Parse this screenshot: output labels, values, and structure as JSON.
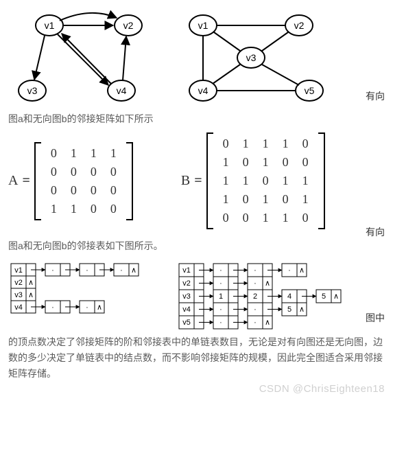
{
  "sideLabels": {
    "top": "有向",
    "mid": "有向",
    "bottom": "图中"
  },
  "graphA": {
    "nodes": [
      "v1",
      "v2",
      "v3",
      "v4"
    ]
  },
  "graphB": {
    "nodes": [
      "v1",
      "v2",
      "v3",
      "v4",
      "v5"
    ]
  },
  "caption1": "图a和无向图b的邻接矩阵如下所示",
  "matA": {
    "label": "A",
    "rows": [
      [
        "0",
        "1",
        "1",
        "1"
      ],
      [
        "0",
        "0",
        "0",
        "0"
      ],
      [
        "0",
        "0",
        "0",
        "0"
      ],
      [
        "1",
        "1",
        "0",
        "0"
      ]
    ]
  },
  "matB": {
    "label": "B",
    "rows": [
      [
        "0",
        "1",
        "1",
        "1",
        "0"
      ],
      [
        "1",
        "0",
        "1",
        "0",
        "0"
      ],
      [
        "1",
        "1",
        "0",
        "1",
        "1"
      ],
      [
        "1",
        "0",
        "1",
        "0",
        "1"
      ],
      [
        "0",
        "0",
        "1",
        "1",
        "0"
      ]
    ]
  },
  "caption2": "图a和无向图b的邻接表如下图所示。",
  "adjA": {
    "labels": [
      "v1",
      "v2",
      "v3",
      "v4"
    ],
    "rows": [
      [
        {
          "v": "·"
        },
        {
          "v": "·"
        },
        {
          "v": "·",
          "nil": true
        }
      ],
      [
        {
          "nil": true
        }
      ],
      [
        {
          "nil": true
        }
      ],
      [
        {
          "v": "·"
        },
        {
          "v": "·",
          "nil": true
        }
      ]
    ]
  },
  "adjB": {
    "labels": [
      "v1",
      "v2",
      "v3",
      "v4",
      "v5"
    ],
    "rows": [
      [
        {
          "v": "·"
        },
        {
          "v": "·"
        },
        {
          "v": "·",
          "nil": true
        }
      ],
      [
        {
          "v": "·"
        },
        {
          "v": "·",
          "nil": true
        }
      ],
      [
        {
          "v": "1"
        },
        {
          "v": "2"
        },
        {
          "v": "4"
        },
        {
          "v": "5",
          "nil": true
        }
      ],
      [
        {
          "v": "·"
        },
        {
          "v": "·"
        },
        {
          "v": "5",
          "nil": true
        }
      ],
      [
        {
          "v": "·"
        },
        {
          "v": "·",
          "nil": true
        }
      ]
    ]
  },
  "paragraph": "的顶点数决定了邻接矩阵的阶和邻接表中的单链表数目，无论是对有向图还是无向图，边数的多少决定了单链表中的结点数，而不影响邻接矩阵的规模，因此完全图适合采用邻接矩阵存储。",
  "watermark": "CSDN @ChrisEighteen18"
}
